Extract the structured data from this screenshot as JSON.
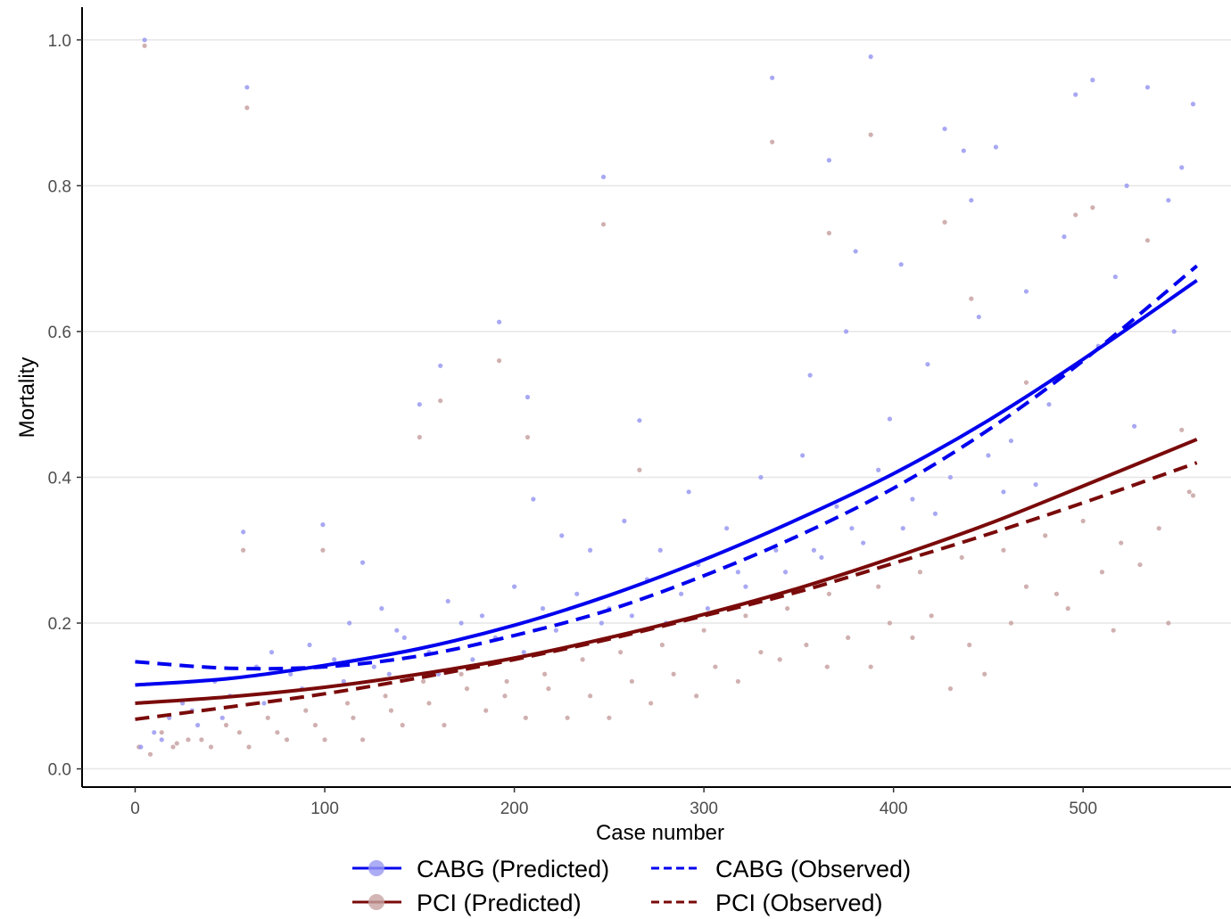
{
  "chart_data": {
    "type": "scatter",
    "title": "",
    "xlabel": "Case number",
    "ylabel": "Mortality",
    "xlim": [
      -28,
      578
    ],
    "ylim": [
      -0.025,
      1.045
    ],
    "x_ticks": [
      0,
      100,
      200,
      300,
      400,
      500
    ],
    "x_tick_labels": [
      "0",
      "100",
      "200",
      "300",
      "400",
      "500"
    ],
    "y_ticks": [
      0.0,
      0.2,
      0.4,
      0.6,
      0.8,
      1.0
    ],
    "y_tick_labels": [
      "0.0",
      "0.2",
      "0.4",
      "0.6",
      "0.8",
      "1.0"
    ],
    "grid": "horizontal major",
    "legend_position": "bottom",
    "colors": {
      "cabg": "#0000ee",
      "pci": "#7a0a0a",
      "cabg_points": "#9999f2",
      "pci_points": "#c8a2a2",
      "grid": "#e6e6e6",
      "axis": "#000000"
    },
    "series": [
      {
        "name": "CABG (Predicted)",
        "kind": "line",
        "style": "solid",
        "color": "#0000ee",
        "x": [
          0,
          50,
          100,
          150,
          200,
          250,
          300,
          350,
          400,
          450,
          500,
          560
        ],
        "y": [
          0.115,
          0.124,
          0.142,
          0.165,
          0.197,
          0.238,
          0.287,
          0.343,
          0.405,
          0.478,
          0.562,
          0.67
        ]
      },
      {
        "name": "CABG (Observed)",
        "kind": "line",
        "style": "dashed",
        "color": "#0000ee",
        "x": [
          0,
          50,
          100,
          150,
          200,
          250,
          300,
          350,
          400,
          450,
          500,
          560
        ],
        "y": [
          0.147,
          0.138,
          0.14,
          0.155,
          0.183,
          0.218,
          0.265,
          0.32,
          0.385,
          0.465,
          0.56,
          0.69
        ]
      },
      {
        "name": "PCI (Predicted)",
        "kind": "line",
        "style": "solid",
        "color": "#7a0a0a",
        "x": [
          0,
          50,
          100,
          150,
          200,
          250,
          300,
          350,
          400,
          450,
          500,
          560
        ],
        "y": [
          0.09,
          0.099,
          0.112,
          0.13,
          0.152,
          0.18,
          0.212,
          0.248,
          0.29,
          0.336,
          0.388,
          0.452
        ]
      },
      {
        "name": "PCI (Observed)",
        "kind": "line",
        "style": "dashed",
        "color": "#7a0a0a",
        "x": [
          0,
          50,
          100,
          150,
          200,
          250,
          300,
          350,
          400,
          450,
          500,
          560
        ],
        "y": [
          0.068,
          0.085,
          0.103,
          0.125,
          0.15,
          0.178,
          0.21,
          0.243,
          0.282,
          0.322,
          0.365,
          0.42
        ]
      }
    ],
    "points": {
      "cabg": [
        [
          5,
          1.0
        ],
        [
          59,
          0.935
        ],
        [
          57,
          0.325
        ],
        [
          99,
          0.335
        ],
        [
          120,
          0.283
        ],
        [
          150,
          0.5
        ],
        [
          161,
          0.553
        ],
        [
          192,
          0.613
        ],
        [
          207,
          0.51
        ],
        [
          247,
          0.812
        ],
        [
          266,
          0.478
        ],
        [
          336,
          0.948
        ],
        [
          366,
          0.835
        ],
        [
          388,
          0.977
        ],
        [
          427,
          0.878
        ],
        [
          437,
          0.848
        ],
        [
          454,
          0.853
        ],
        [
          496,
          0.925
        ],
        [
          505,
          0.945
        ],
        [
          534,
          0.935
        ],
        [
          552,
          0.825
        ],
        [
          558,
          0.912
        ],
        [
          523,
          0.8
        ],
        [
          545,
          0.78
        ],
        [
          380,
          0.71
        ],
        [
          404,
          0.692
        ],
        [
          441,
          0.78
        ],
        [
          470,
          0.655
        ],
        [
          490,
          0.73
        ],
        [
          517,
          0.675
        ],
        [
          356,
          0.54
        ],
        [
          375,
          0.6
        ],
        [
          398,
          0.48
        ],
        [
          418,
          0.555
        ],
        [
          445,
          0.62
        ],
        [
          462,
          0.45
        ],
        [
          482,
          0.5
        ],
        [
          508,
          0.58
        ],
        [
          527,
          0.47
        ],
        [
          548,
          0.6
        ],
        [
          292,
          0.38
        ],
        [
          312,
          0.33
        ],
        [
          330,
          0.4
        ],
        [
          352,
          0.43
        ],
        [
          370,
          0.36
        ],
        [
          392,
          0.41
        ],
        [
          410,
          0.37
        ],
        [
          430,
          0.4
        ],
        [
          450,
          0.43
        ],
        [
          475,
          0.39
        ],
        [
          210,
          0.37
        ],
        [
          225,
          0.32
        ],
        [
          240,
          0.3
        ],
        [
          258,
          0.34
        ],
        [
          277,
          0.3
        ],
        [
          297,
          0.28
        ],
        [
          318,
          0.27
        ],
        [
          338,
          0.3
        ],
        [
          358,
          0.3
        ],
        [
          378,
          0.33
        ],
        [
          130,
          0.22
        ],
        [
          142,
          0.18
        ],
        [
          165,
          0.23
        ],
        [
          183,
          0.21
        ],
        [
          200,
          0.25
        ],
        [
          215,
          0.22
        ],
        [
          233,
          0.24
        ],
        [
          250,
          0.22
        ],
        [
          270,
          0.26
        ],
        [
          288,
          0.24
        ],
        [
          10,
          0.05
        ],
        [
          18,
          0.07
        ],
        [
          25,
          0.09
        ],
        [
          33,
          0.06
        ],
        [
          42,
          0.12
        ],
        [
          50,
          0.1
        ],
        [
          64,
          0.14
        ],
        [
          72,
          0.16
        ],
        [
          82,
          0.13
        ],
        [
          92,
          0.17
        ],
        [
          105,
          0.15
        ],
        [
          113,
          0.2
        ],
        [
          126,
          0.14
        ],
        [
          138,
          0.19
        ],
        [
          155,
          0.16
        ],
        [
          172,
          0.2
        ],
        [
          190,
          0.18
        ],
        [
          205,
          0.16
        ],
        [
          222,
          0.19
        ],
        [
          246,
          0.2
        ],
        [
          262,
          0.21
        ],
        [
          280,
          0.2
        ],
        [
          302,
          0.22
        ],
        [
          322,
          0.25
        ],
        [
          343,
          0.27
        ],
        [
          362,
          0.29
        ],
        [
          384,
          0.31
        ],
        [
          405,
          0.33
        ],
        [
          422,
          0.35
        ],
        [
          458,
          0.38
        ],
        [
          3,
          0.03
        ],
        [
          14,
          0.04
        ],
        [
          30,
          0.08
        ],
        [
          46,
          0.07
        ],
        [
          68,
          0.09
        ],
        [
          88,
          0.11
        ],
        [
          110,
          0.12
        ],
        [
          134,
          0.13
        ],
        [
          160,
          0.13
        ],
        [
          178,
          0.15
        ]
      ],
      "pci": [
        [
          5,
          0.992
        ],
        [
          59,
          0.907
        ],
        [
          57,
          0.3
        ],
        [
          99,
          0.3
        ],
        [
          150,
          0.455
        ],
        [
          161,
          0.505
        ],
        [
          192,
          0.56
        ],
        [
          207,
          0.455
        ],
        [
          247,
          0.747
        ],
        [
          266,
          0.41
        ],
        [
          336,
          0.86
        ],
        [
          366,
          0.735
        ],
        [
          388,
          0.87
        ],
        [
          427,
          0.75
        ],
        [
          441,
          0.645
        ],
        [
          470,
          0.53
        ],
        [
          496,
          0.76
        ],
        [
          505,
          0.77
        ],
        [
          534,
          0.725
        ],
        [
          552,
          0.465
        ],
        [
          558,
          0.375
        ],
        [
          545,
          0.2
        ],
        [
          516,
          0.19
        ],
        [
          492,
          0.22
        ],
        [
          470,
          0.25
        ],
        [
          448,
          0.13
        ],
        [
          430,
          0.11
        ],
        [
          410,
          0.18
        ],
        [
          388,
          0.14
        ],
        [
          365,
          0.14
        ],
        [
          340,
          0.15
        ],
        [
          318,
          0.12
        ],
        [
          296,
          0.1
        ],
        [
          272,
          0.09
        ],
        [
          250,
          0.07
        ],
        [
          228,
          0.07
        ],
        [
          206,
          0.07
        ],
        [
          185,
          0.08
        ],
        [
          163,
          0.06
        ],
        [
          141,
          0.06
        ],
        [
          120,
          0.04
        ],
        [
          100,
          0.04
        ],
        [
          80,
          0.04
        ],
        [
          60,
          0.03
        ],
        [
          40,
          0.03
        ],
        [
          20,
          0.03
        ],
        [
          8,
          0.02
        ],
        [
          2,
          0.03
        ],
        [
          14,
          0.05
        ],
        [
          28,
          0.04
        ],
        [
          48,
          0.06
        ],
        [
          70,
          0.07
        ],
        [
          90,
          0.08
        ],
        [
          112,
          0.09
        ],
        [
          132,
          0.1
        ],
        [
          152,
          0.12
        ],
        [
          172,
          0.13
        ],
        [
          196,
          0.12
        ],
        [
          216,
          0.13
        ],
        [
          236,
          0.15
        ],
        [
          256,
          0.16
        ],
        [
          278,
          0.17
        ],
        [
          300,
          0.19
        ],
        [
          322,
          0.21
        ],
        [
          344,
          0.22
        ],
        [
          366,
          0.24
        ],
        [
          392,
          0.25
        ],
        [
          414,
          0.27
        ],
        [
          436,
          0.29
        ],
        [
          458,
          0.3
        ],
        [
          480,
          0.32
        ],
        [
          500,
          0.34
        ],
        [
          520,
          0.31
        ],
        [
          540,
          0.33
        ],
        [
          556,
          0.38
        ],
        [
          530,
          0.28
        ],
        [
          510,
          0.27
        ],
        [
          486,
          0.24
        ],
        [
          462,
          0.2
        ],
        [
          440,
          0.17
        ],
        [
          420,
          0.21
        ],
        [
          398,
          0.2
        ],
        [
          376,
          0.18
        ],
        [
          354,
          0.17
        ],
        [
          330,
          0.16
        ],
        [
          306,
          0.14
        ],
        [
          284,
          0.13
        ],
        [
          262,
          0.12
        ],
        [
          240,
          0.1
        ],
        [
          218,
          0.11
        ],
        [
          195,
          0.1
        ],
        [
          175,
          0.11
        ],
        [
          155,
          0.09
        ],
        [
          135,
          0.08
        ],
        [
          115,
          0.07
        ],
        [
          95,
          0.06
        ],
        [
          75,
          0.05
        ],
        [
          55,
          0.05
        ],
        [
          35,
          0.04
        ],
        [
          22,
          0.035
        ]
      ]
    }
  }
}
